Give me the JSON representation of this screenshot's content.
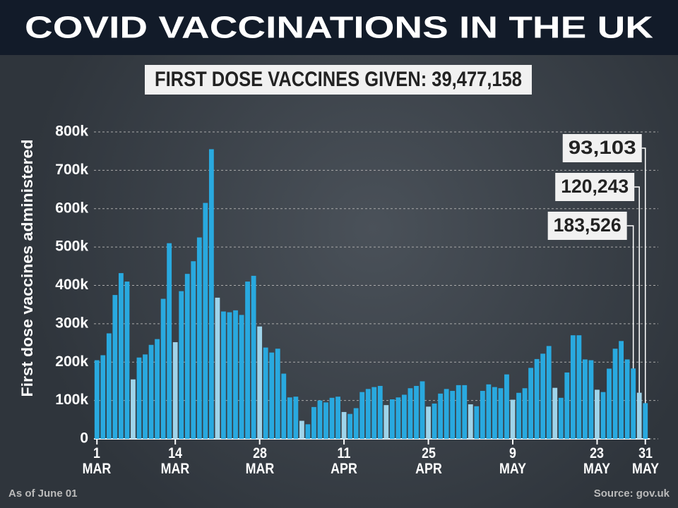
{
  "chart_data": {
    "type": "bar",
    "title": "COVID VACCINATIONS IN THE UK",
    "subtitle": "FIRST DOSE VACCINES GIVEN: 39,477,158",
    "y_label": "First dose vaccines administered",
    "footnote": "As of June 01",
    "source": "Source: gov.uk",
    "categories": [
      "1 MAR",
      null,
      null,
      null,
      null,
      null,
      null,
      null,
      null,
      null,
      null,
      null,
      null,
      "14 MAR",
      null,
      null,
      null,
      null,
      null,
      null,
      null,
      null,
      null,
      null,
      null,
      null,
      null,
      "28 MAR",
      null,
      null,
      null,
      null,
      null,
      null,
      null,
      null,
      null,
      null,
      null,
      null,
      null,
      "11 APR",
      null,
      null,
      null,
      null,
      null,
      null,
      null,
      null,
      null,
      null,
      null,
      null,
      null,
      "25 APR",
      null,
      null,
      null,
      null,
      null,
      null,
      null,
      null,
      null,
      null,
      null,
      null,
      null,
      "9 MAY",
      null,
      null,
      null,
      null,
      null,
      null,
      null,
      null,
      null,
      null,
      null,
      null,
      null,
      "23 MAY",
      null,
      null,
      null,
      null,
      null,
      null,
      null,
      "31 MAY"
    ],
    "values": [
      205,
      218,
      275,
      375,
      432,
      410,
      155,
      212,
      220,
      245,
      260,
      365,
      510,
      252,
      385,
      430,
      463,
      525,
      615,
      755,
      368,
      332,
      330,
      335,
      323,
      410,
      425,
      293,
      238,
      225,
      235,
      170,
      108,
      110,
      47,
      38,
      83,
      100,
      95,
      107,
      110,
      70,
      65,
      80,
      122,
      130,
      135,
      138,
      88,
      103,
      108,
      115,
      132,
      138,
      150,
      84,
      92,
      118,
      130,
      125,
      140,
      140,
      90,
      85,
      125,
      142,
      135,
      132,
      168,
      102,
      120,
      132,
      185,
      208,
      222,
      242,
      133,
      107,
      173,
      270,
      270,
      207,
      205,
      128,
      122,
      183,
      235,
      255,
      207,
      183.526,
      120.243,
      93.103
    ],
    "value_labels": [
      null,
      null,
      null,
      null,
      null,
      null,
      null,
      null,
      null,
      null,
      null,
      null,
      null,
      null,
      null,
      null,
      null,
      null,
      null,
      null,
      null,
      null,
      null,
      null,
      null,
      null,
      null,
      null,
      null,
      null,
      null,
      null,
      null,
      null,
      null,
      null,
      null,
      null,
      null,
      null,
      null,
      null,
      null,
      null,
      null,
      null,
      null,
      null,
      null,
      null,
      null,
      null,
      null,
      null,
      null,
      null,
      null,
      null,
      null,
      null,
      null,
      null,
      null,
      null,
      null,
      null,
      null,
      null,
      null,
      null,
      null,
      null,
      null,
      null,
      null,
      null,
      null,
      null,
      null,
      null,
      null,
      null,
      null,
      null,
      null,
      null,
      null,
      null,
      null,
      "183,526",
      "120,243",
      "93,103"
    ],
    "colors": [
      "#29a9df",
      "#29a9df",
      "#29a9df",
      "#29a9df",
      "#29a9df",
      "#29a9df",
      "#9fd4ea",
      "#29a9df",
      "#29a9df",
      "#29a9df",
      "#29a9df",
      "#29a9df",
      "#29a9df",
      "#9fd4ea",
      "#29a9df",
      "#29a9df",
      "#29a9df",
      "#29a9df",
      "#29a9df",
      "#29a9df",
      "#9fd4ea",
      "#29a9df",
      "#29a9df",
      "#29a9df",
      "#29a9df",
      "#29a9df",
      "#29a9df",
      "#9fd4ea",
      "#29a9df",
      "#29a9df",
      "#29a9df",
      "#29a9df",
      "#29a9df",
      "#29a9df",
      "#9fd4ea",
      "#29a9df",
      "#29a9df",
      "#29a9df",
      "#29a9df",
      "#29a9df",
      "#29a9df",
      "#9fd4ea",
      "#29a9df",
      "#29a9df",
      "#29a9df",
      "#29a9df",
      "#29a9df",
      "#29a9df",
      "#9fd4ea",
      "#29a9df",
      "#29a9df",
      "#29a9df",
      "#29a9df",
      "#29a9df",
      "#29a9df",
      "#9fd4ea",
      "#29a9df",
      "#29a9df",
      "#29a9df",
      "#29a9df",
      "#29a9df",
      "#29a9df",
      "#9fd4ea",
      "#29a9df",
      "#29a9df",
      "#29a9df",
      "#29a9df",
      "#29a9df",
      "#29a9df",
      "#9fd4ea",
      "#29a9df",
      "#29a9df",
      "#29a9df",
      "#29a9df",
      "#29a9df",
      "#29a9df",
      "#9fd4ea",
      "#29a9df",
      "#29a9df",
      "#29a9df",
      "#29a9df",
      "#29a9df",
      "#29a9df",
      "#9fd4ea",
      "#29a9df",
      "#29a9df",
      "#29a9df",
      "#29a9df",
      "#29a9df",
      "#29a9df",
      "#9fd4ea",
      "#29a9df"
    ],
    "ylim": [
      0,
      800
    ],
    "yticks": [
      0,
      {
        "value": 100,
        "label": "100k"
      },
      {
        "value": 200,
        "label": "200k"
      },
      {
        "value": 300,
        "label": "300k"
      },
      {
        "value": 400,
        "label": "400k"
      },
      {
        "value": 500,
        "label": "500k"
      },
      {
        "value": 600,
        "label": "600k"
      },
      {
        "value": 700,
        "label": "700k"
      },
      {
        "value": 800,
        "label": "800k"
      }
    ],
    "grid": true
  }
}
